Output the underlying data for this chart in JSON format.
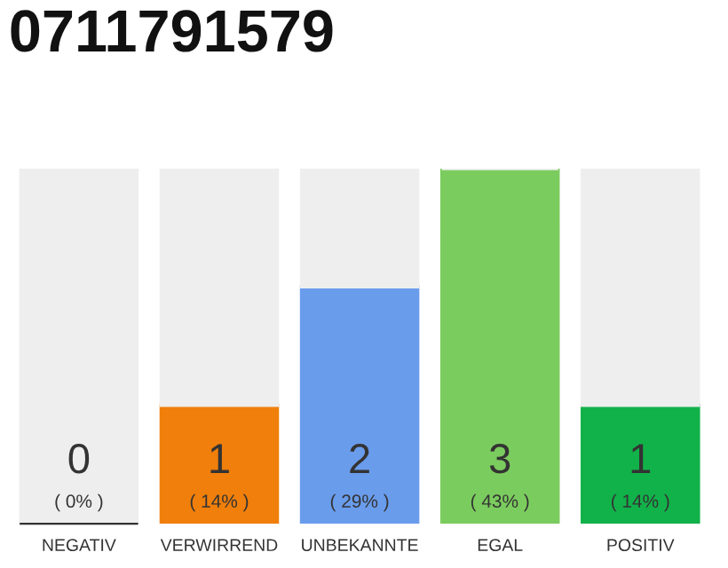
{
  "chart_data": {
    "type": "bar",
    "title": "0711791579",
    "categories": [
      "NEGATIV",
      "VERWIRREND",
      "UNBEKANNTE",
      "EGAL",
      "POSITIV"
    ],
    "stacked": true,
    "series": [
      {
        "colors": [
          "#3a3a3a",
          "#f07f0b",
          "#6a9cec",
          "#7bcc5e",
          "#12b24a"
        ],
        "values": [
          0,
          1,
          2,
          3,
          1
        ],
        "value_labels": [
          "0\n( 0% )",
          "1\n( 14% )",
          "2\n( 29% )",
          "3\n( 43% )",
          "1\n( 14% )"
        ]
      },
      {
        "color": "#eeeeee",
        "values": [
          3,
          2,
          1,
          0,
          2
        ]
      }
    ],
    "ylim": [
      0,
      3
    ],
    "tick_labels": "x"
  }
}
